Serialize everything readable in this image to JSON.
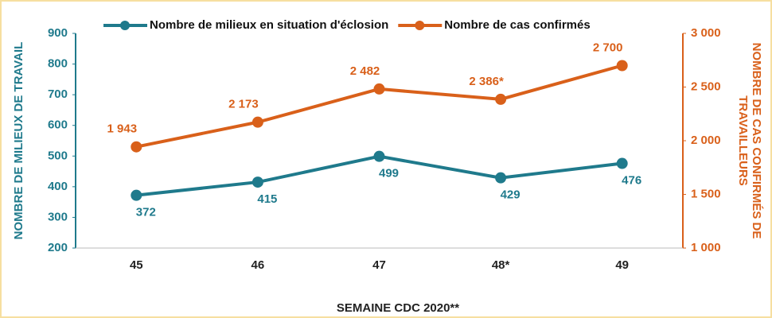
{
  "chart_data": {
    "type": "line",
    "categories": [
      "45",
      "46",
      "47",
      "48*",
      "49"
    ],
    "x_label": "SEMAINE CDC 2020**",
    "y_label": "NOMBRE DE MILIEUX DE TRAVAIL",
    "y2_label": [
      "NOMBRE DE CAS CONFIRMÉS DE",
      "TRAVAILLEURS"
    ],
    "ylim": [
      200,
      900
    ],
    "yticks": [
      200,
      300,
      400,
      500,
      600,
      700,
      800,
      900
    ],
    "y2lim": [
      1000,
      3000
    ],
    "y2ticks": [
      {
        "value": 1000,
        "label": "1 000"
      },
      {
        "value": 1500,
        "label": "1 500"
      },
      {
        "value": 2000,
        "label": "2 000"
      },
      {
        "value": 2500,
        "label": "2 500"
      },
      {
        "value": 3000,
        "label": "3 000"
      }
    ],
    "legend": "top",
    "series": [
      {
        "name": "Nombre de milieux en situation d'éclosion",
        "color": "#1f7a8c",
        "axis": "y",
        "values": [
          372,
          415,
          499,
          429,
          476
        ]
      },
      {
        "name": "Nombre de cas confirmés",
        "color": "#d9601a",
        "axis": "y2",
        "values": [
          1943,
          2173,
          2482,
          2386,
          2700
        ],
        "value_labels": [
          "1 943",
          "2 173",
          "2 482",
          "2 386*",
          "2 700"
        ]
      }
    ]
  }
}
